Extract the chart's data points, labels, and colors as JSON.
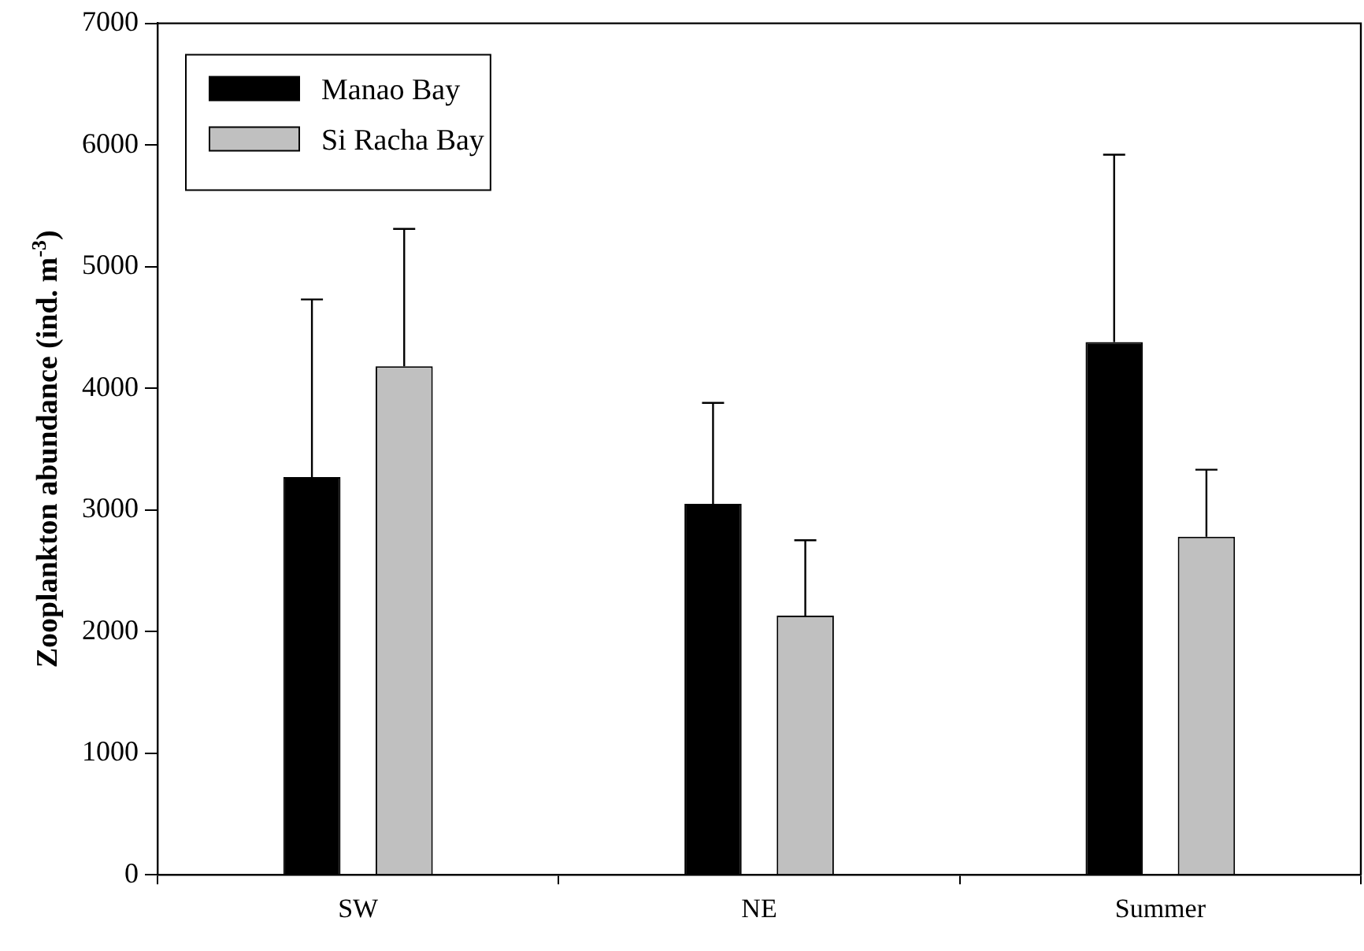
{
  "chart_data": {
    "type": "bar",
    "ylabel": "Zooplankton abundance (ind. m$^{-3}$)",
    "categories": [
      "SW",
      "NE",
      "Summer"
    ],
    "series": [
      {
        "name": "Manao Bay",
        "color": "#000000",
        "values": [
          3270,
          3050,
          4380
        ],
        "errors": [
          [
            3270,
            4730
          ],
          [
            3050,
            3880
          ],
          [
            4380,
            5920
          ]
        ]
      },
      {
        "name": "Si Racha Bay",
        "color": "#c0c0c0",
        "values": [
          4180,
          2130,
          2780
        ],
        "errors": [
          [
            4180,
            5310
          ],
          [
            2130,
            2750
          ],
          [
            2780,
            3330
          ]
        ]
      }
    ],
    "ylim": [
      0,
      7000
    ],
    "yticks": [
      0,
      1000,
      2000,
      3000,
      4000,
      5000,
      6000,
      7000
    ],
    "grid": false,
    "legend": "top left"
  }
}
